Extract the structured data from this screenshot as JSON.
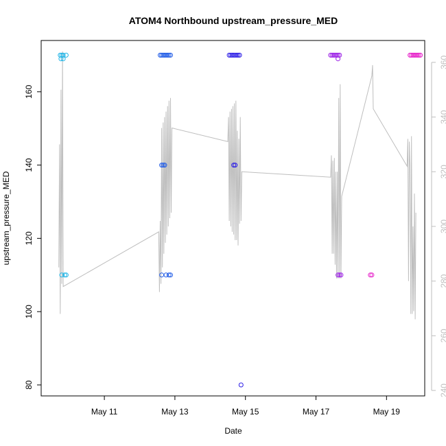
{
  "chart_data": {
    "type": "scatter",
    "title": "ATOM4 Northbound upstream_pressure_MED",
    "xlabel": "Date",
    "ylabel": "upstream_pressure_MED",
    "x_range": [
      "2023-05-09T05:00",
      "2023-05-20T02:00"
    ],
    "ylim": [
      77,
      174
    ],
    "y2lim": [
      238,
      368
    ],
    "x_ticks": [
      {
        "label": "May 11",
        "date": "2023-05-11"
      },
      {
        "label": "May 13",
        "date": "2023-05-13"
      },
      {
        "label": "May 15",
        "date": "2023-05-15"
      },
      {
        "label": "May 17",
        "date": "2023-05-17"
      },
      {
        "label": "May 19",
        "date": "2023-05-19"
      }
    ],
    "y_ticks": [
      80,
      100,
      120,
      140,
      160
    ],
    "y2_ticks": [
      240,
      260,
      280,
      300,
      320,
      340,
      360
    ],
    "colors": {
      "line": "#bebebe",
      "frame": "#000000",
      "right_axis": "#bebebe"
    },
    "grid": false,
    "series": [
      {
        "color": "#1eb4e6",
        "points": [
          [
            "2023-05-09T18:00",
            170
          ],
          [
            "2023-05-09T19:00",
            170
          ],
          [
            "2023-05-09T20:00",
            170
          ],
          [
            "2023-05-09T22:00",
            170
          ],
          [
            "2023-05-09T18:30",
            169
          ],
          [
            "2023-05-09T20:00",
            169
          ],
          [
            "2023-05-09T19:00",
            110
          ],
          [
            "2023-05-09T21:00",
            110
          ],
          [
            "2023-05-09T22:00",
            110
          ]
        ]
      },
      {
        "color": "#1e5ae6",
        "points": [
          [
            "2023-05-12T14:00",
            170
          ],
          [
            "2023-05-12T15:00",
            170
          ],
          [
            "2023-05-12T16:00",
            170
          ],
          [
            "2023-05-12T17:00",
            170
          ],
          [
            "2023-05-12T18:00",
            170
          ],
          [
            "2023-05-12T19:00",
            170
          ],
          [
            "2023-05-12T20:00",
            170
          ],
          [
            "2023-05-12T21:00",
            170
          ],
          [
            "2023-05-12T15:00",
            140
          ],
          [
            "2023-05-12T16:00",
            140
          ],
          [
            "2023-05-12T17:00",
            140
          ],
          [
            "2023-05-12T15:00",
            110
          ],
          [
            "2023-05-12T18:00",
            110
          ],
          [
            "2023-05-12T20:00",
            110
          ],
          [
            "2023-05-12T21:00",
            110
          ]
        ]
      },
      {
        "color": "#2d1ee6",
        "points": [
          [
            "2023-05-14T13:00",
            170
          ],
          [
            "2023-05-14T14:00",
            170
          ],
          [
            "2023-05-14T15:00",
            170
          ],
          [
            "2023-05-14T16:00",
            170
          ],
          [
            "2023-05-14T17:00",
            170
          ],
          [
            "2023-05-14T18:00",
            170
          ],
          [
            "2023-05-14T19:00",
            170
          ],
          [
            "2023-05-14T20:00",
            170
          ],
          [
            "2023-05-14T16:00",
            140
          ],
          [
            "2023-05-14T17:00",
            140
          ],
          [
            "2023-05-14T21:00",
            80
          ]
        ]
      },
      {
        "color": "#9b1ee6",
        "points": [
          [
            "2023-05-17T10:00",
            170
          ],
          [
            "2023-05-17T11:00",
            170
          ],
          [
            "2023-05-17T12:00",
            170
          ],
          [
            "2023-05-17T13:00",
            170
          ],
          [
            "2023-05-17T14:00",
            170
          ],
          [
            "2023-05-17T15:00",
            170
          ],
          [
            "2023-05-17T16:00",
            170
          ],
          [
            "2023-05-17T15:00",
            169
          ],
          [
            "2023-05-17T15:00",
            110
          ],
          [
            "2023-05-17T16:00",
            110
          ],
          [
            "2023-05-17T17:00",
            110
          ]
        ]
      },
      {
        "color": "#e61ec8",
        "points": [
          [
            "2023-05-18T13:00",
            110
          ],
          [
            "2023-05-18T14:00",
            110
          ],
          [
            "2023-05-19T16:00",
            170
          ],
          [
            "2023-05-19T17:00",
            170
          ],
          [
            "2023-05-19T18:00",
            170
          ],
          [
            "2023-05-19T19:00",
            170
          ],
          [
            "2023-05-19T20:00",
            170
          ],
          [
            "2023-05-19T21:00",
            170
          ],
          [
            "2023-05-19T22:00",
            170
          ],
          [
            "2023-05-19T23:00",
            170
          ]
        ]
      }
    ],
    "line_series": {
      "axis": "right",
      "color": "#bebebe",
      "points": [
        [
          "2023-05-09T17:00",
          285
        ],
        [
          "2023-05-09T17:30",
          330
        ],
        [
          "2023-05-09T18:00",
          268
        ],
        [
          "2023-05-09T18:30",
          350
        ],
        [
          "2023-05-09T19:00",
          279
        ],
        [
          "2023-05-09T19:30",
          364
        ],
        [
          "2023-05-09T20:00",
          278
        ],
        [
          "2023-05-12T13:00",
          298
        ],
        [
          "2023-05-12T13:30",
          276
        ],
        [
          "2023-05-12T14:00",
          302
        ],
        [
          "2023-05-12T14:30",
          279
        ],
        [
          "2023-05-12T15:00",
          336
        ],
        [
          "2023-05-12T15:30",
          285
        ],
        [
          "2023-05-12T16:00",
          338
        ],
        [
          "2023-05-12T16:30",
          290
        ],
        [
          "2023-05-12T17:00",
          340
        ],
        [
          "2023-05-12T17:30",
          294
        ],
        [
          "2023-05-12T18:00",
          342
        ],
        [
          "2023-05-12T18:30",
          297
        ],
        [
          "2023-05-12T19:00",
          344
        ],
        [
          "2023-05-12T19:30",
          300
        ],
        [
          "2023-05-12T20:00",
          346
        ],
        [
          "2023-05-12T20:30",
          303
        ],
        [
          "2023-05-12T21:00",
          347
        ],
        [
          "2023-05-12T21:30",
          305
        ],
        [
          "2023-05-12T22:00",
          336
        ],
        [
          "2023-05-14T12:00",
          331
        ],
        [
          "2023-05-14T12:30",
          340
        ],
        [
          "2023-05-14T13:00",
          302
        ],
        [
          "2023-05-14T13:30",
          342
        ],
        [
          "2023-05-14T14:00",
          300
        ],
        [
          "2023-05-14T14:30",
          343
        ],
        [
          "2023-05-14T15:00",
          298
        ],
        [
          "2023-05-14T15:30",
          344
        ],
        [
          "2023-05-14T16:00",
          297
        ],
        [
          "2023-05-14T16:30",
          345
        ],
        [
          "2023-05-14T17:00",
          295
        ],
        [
          "2023-05-14T17:30",
          346
        ],
        [
          "2023-05-14T18:00",
          295
        ],
        [
          "2023-05-14T18:30",
          335
        ],
        [
          "2023-05-14T19:00",
          293
        ],
        [
          "2023-05-14T19:30",
          332
        ],
        [
          "2023-05-14T20:00",
          301
        ],
        [
          "2023-05-14T20:30",
          340
        ],
        [
          "2023-05-14T21:00",
          302
        ],
        [
          "2023-05-14T21:30",
          320
        ],
        [
          "2023-05-17T10:00",
          318
        ],
        [
          "2023-05-17T10:30",
          326
        ],
        [
          "2023-05-17T11:00",
          290
        ],
        [
          "2023-05-17T11:30",
          324
        ],
        [
          "2023-05-17T12:00",
          290
        ],
        [
          "2023-05-17T12:30",
          325
        ],
        [
          "2023-05-17T13:00",
          286
        ],
        [
          "2023-05-17T13:30",
          320
        ],
        [
          "2023-05-17T14:00",
          281
        ],
        [
          "2023-05-17T14:30",
          320
        ],
        [
          "2023-05-17T15:00",
          281
        ],
        [
          "2023-05-17T15:30",
          347
        ],
        [
          "2023-05-17T16:00",
          281
        ],
        [
          "2023-05-17T16:30",
          352
        ],
        [
          "2023-05-17T17:00",
          281
        ],
        [
          "2023-05-17T17:30",
          311
        ],
        [
          "2023-05-18T14:00",
          355
        ],
        [
          "2023-05-18T14:30",
          359
        ],
        [
          "2023-05-18T15:00",
          343
        ],
        [
          "2023-05-19T14:00",
          322
        ],
        [
          "2023-05-19T14:30",
          332
        ],
        [
          "2023-05-19T15:00",
          280
        ],
        [
          "2023-05-19T15:30",
          331
        ],
        [
          "2023-05-19T16:00",
          322
        ],
        [
          "2023-05-19T16:30",
          268
        ],
        [
          "2023-05-19T17:00",
          333
        ],
        [
          "2023-05-19T17:30",
          268
        ],
        [
          "2023-05-19T18:00",
          300
        ],
        [
          "2023-05-19T18:30",
          269
        ],
        [
          "2023-05-19T19:00",
          312
        ],
        [
          "2023-05-19T19:30",
          266
        ],
        [
          "2023-05-19T20:00",
          305
        ]
      ]
    }
  }
}
